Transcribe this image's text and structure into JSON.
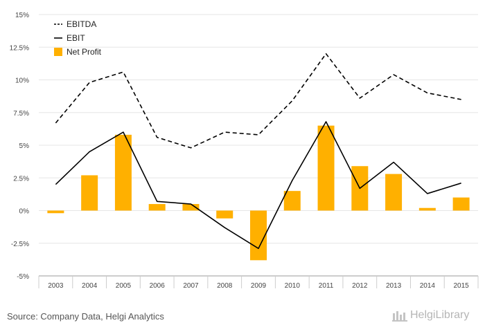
{
  "chart_data": {
    "type": "bar+line",
    "categories": [
      "2003",
      "2004",
      "2005",
      "2006",
      "2007",
      "2008",
      "2009",
      "2010",
      "2011",
      "2012",
      "2013",
      "2014",
      "2015"
    ],
    "y_ticks": [
      "15%",
      "12.5%",
      "10%",
      "7.5%",
      "5%",
      "2.5%",
      "0%",
      "-2.5%",
      "-5%"
    ],
    "ylim": [
      -5,
      15
    ],
    "grid": true,
    "legend_position": "top-left",
    "series": [
      {
        "name": "EBITDA",
        "kind": "line",
        "style": "dashed",
        "color": "#000000",
        "values": [
          6.7,
          9.8,
          10.6,
          5.6,
          4.8,
          6.0,
          5.8,
          8.4,
          12.0,
          8.6,
          10.4,
          9.0,
          8.5
        ]
      },
      {
        "name": "EBIT",
        "kind": "line",
        "style": "solid",
        "color": "#000000",
        "values": [
          2.0,
          4.5,
          6.0,
          0.7,
          0.5,
          -1.3,
          -2.9,
          2.3,
          6.8,
          1.7,
          3.7,
          1.3,
          2.1
        ]
      },
      {
        "name": "Net Profit",
        "kind": "bar",
        "color": "#FFB000",
        "values": [
          -0.2,
          2.7,
          5.8,
          0.5,
          0.5,
          -0.6,
          -3.8,
          1.5,
          6.5,
          3.4,
          2.8,
          0.2,
          1.0
        ]
      }
    ]
  },
  "footer": {
    "source": "Source: Company Data, Helgi Analytics",
    "logo": "HelgiLibrary"
  }
}
